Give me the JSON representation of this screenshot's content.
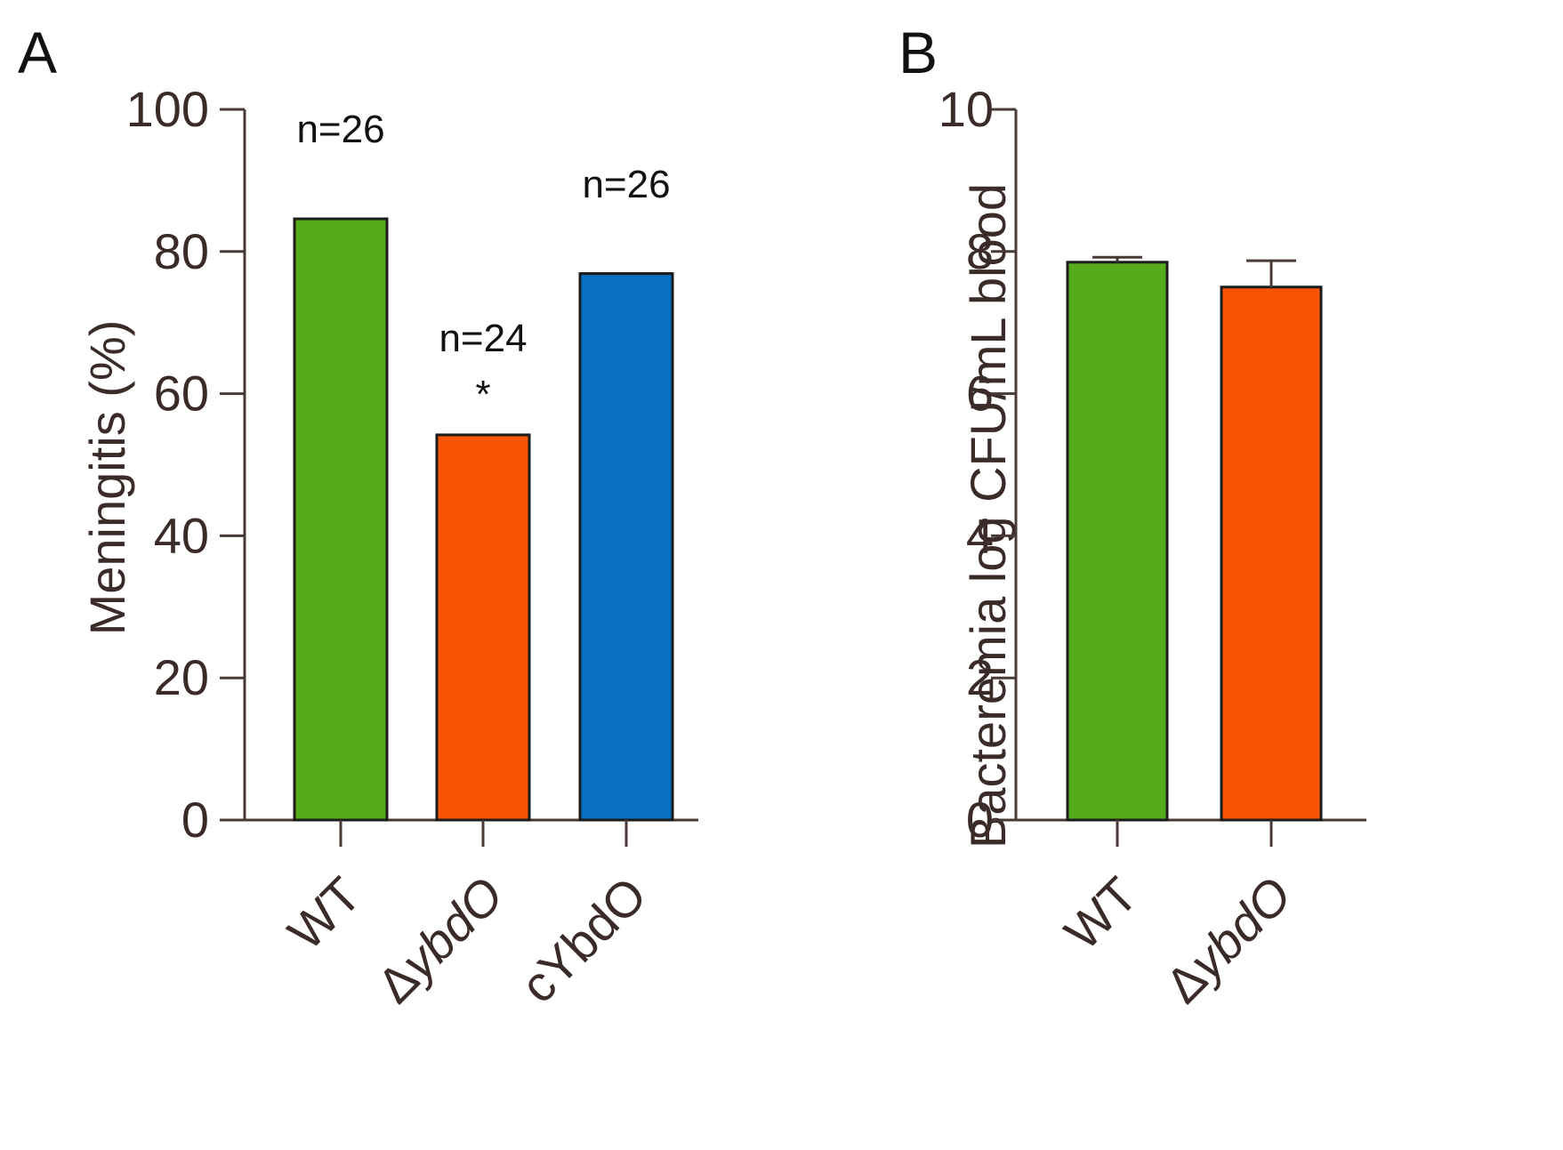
{
  "chart_data": [
    {
      "panel": "A",
      "type": "bar",
      "categories": [
        "WT",
        "ΔybdO",
        "cYbdO"
      ],
      "categories_italic": [
        null,
        "ybdO",
        null
      ],
      "values": [
        84.6,
        54.2,
        76.9
      ],
      "colors": [
        "#56ab1a",
        "#f75406",
        "#0870c2"
      ],
      "ylabel": "Meningitis (%)",
      "xlabel": "",
      "ylim": [
        0,
        100
      ],
      "yticks": [
        0,
        20,
        40,
        60,
        80,
        100
      ],
      "annotations": [
        {
          "category": "WT",
          "lines": [
            "n=26"
          ]
        },
        {
          "category": "ΔybdO",
          "lines": [
            "n=24",
            "*"
          ]
        },
        {
          "category": "cYbdO",
          "lines": [
            "n=26"
          ]
        }
      ]
    },
    {
      "panel": "B",
      "type": "bar",
      "categories": [
        "WT",
        "ΔybdO"
      ],
      "categories_italic": [
        null,
        "ybdO"
      ],
      "values": [
        7.85,
        7.5
      ],
      "errors": [
        0.07,
        0.37
      ],
      "colors": [
        "#56ab1a",
        "#f75406"
      ],
      "ylabel": "Bacteremia log CFU/mL blood",
      "xlabel": "",
      "ylim": [
        0,
        10
      ],
      "yticks": [
        0,
        2,
        4,
        6,
        8,
        10
      ]
    }
  ]
}
